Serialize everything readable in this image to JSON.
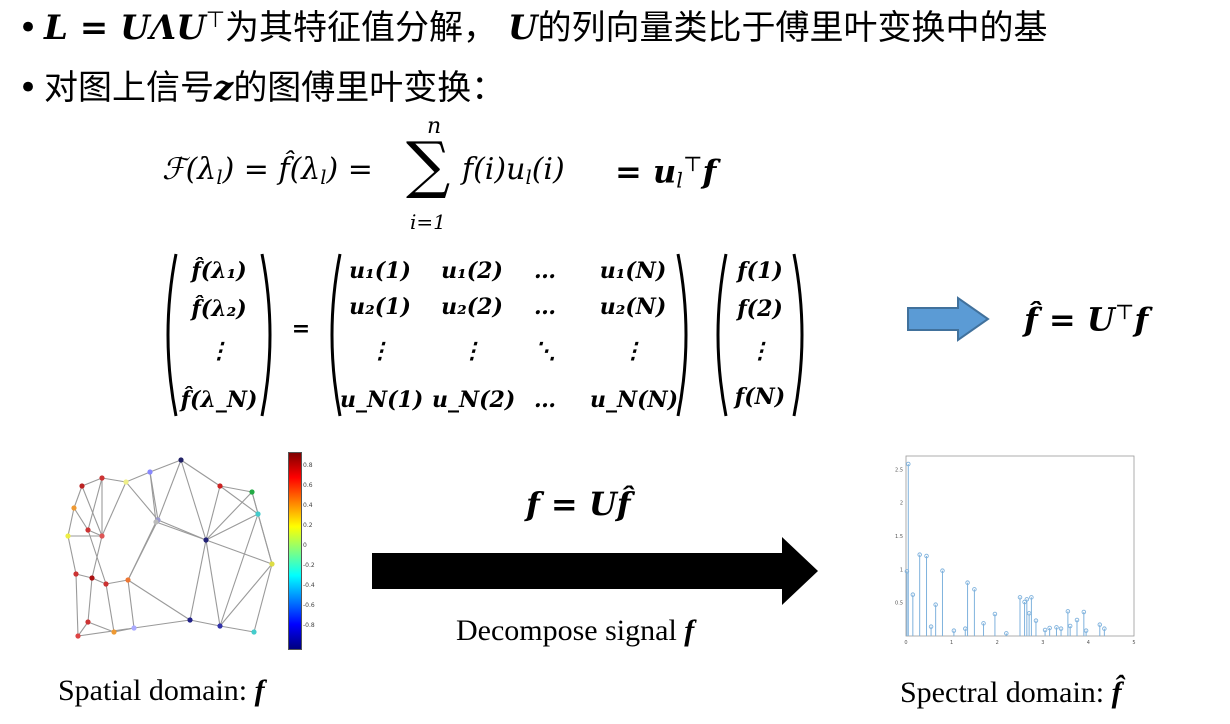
{
  "bullets": [
    {
      "math_a": "L = UΛU",
      "sup_a": "⊤",
      "text_a": "为其特征值分解，",
      "math_b": "U",
      "text_b": "的列向量类比于傅里叶变换中的基"
    },
    {
      "text_a": "对图上信号",
      "math_b": "z",
      "text_b": "的图傅里叶变换："
    }
  ],
  "formula": {
    "lhs": "ℱ(λ",
    "sub_l": "l",
    "mid": ") = f̂(λ",
    "mid_close": ") =",
    "sum_top": "n",
    "sum_sym": "∑",
    "sum_bottom": "i=1",
    "summand": "f(i)u",
    "summand_close": "(i)",
    "rhs": "= u",
    "rhs_sup": "⊤",
    "rhs_f": "f"
  },
  "matrix_eq": {
    "lhs_vector": [
      "f̂(λ₁)",
      "f̂(λ₂)",
      "⋮",
      "f̂(λ_N)"
    ],
    "equals": "=",
    "matrix": [
      [
        "u₁(1)",
        "u₁(2)",
        "…",
        "u₁(N)"
      ],
      [
        "u₂(1)",
        "u₂(2)",
        "…",
        "u₂(N)"
      ],
      [
        "⋮",
        "⋮",
        "⋱",
        "⋮"
      ],
      [
        "u_N(1)",
        "u_N(2)",
        "…",
        "u_N(N)"
      ]
    ],
    "rhs_vector": [
      "f(1)",
      "f(2)",
      "⋮",
      "f(N)"
    ]
  },
  "result": {
    "text": "f̂ = U",
    "sup": "⊤",
    "tail": "f"
  },
  "inverse": {
    "text": "f = Uf̂"
  },
  "captions": {
    "decompose": "Decompose signal",
    "decompose_math": "f",
    "spatial": "Spatial domain:",
    "spatial_math": "f",
    "spectral": "Spectral domain:",
    "spectral_math": "f̂"
  },
  "colors": {
    "arrow_blue": "#5b9bd5",
    "arrow_black": "#000000",
    "stem": "#7fb2dd"
  },
  "colorbar": {
    "ticks": [
      "0.8",
      "0.6",
      "0.4",
      "0.2",
      "0",
      "-0.2",
      "-0.4",
      "-0.6",
      "-0.8"
    ]
  },
  "chart_data": {
    "type": "stem",
    "title": "",
    "xlabel": "",
    "ylabel": "",
    "xlim": [
      0,
      5
    ],
    "ylim": [
      0,
      2.7
    ],
    "xticks": [
      "0",
      "1",
      "2",
      "3",
      "4",
      "5"
    ],
    "yticks": [
      "0.5",
      "1",
      "1.5",
      "2",
      "2.5"
    ],
    "x": [
      0.02,
      0.05,
      0.15,
      0.3,
      0.45,
      0.55,
      0.65,
      0.8,
      1.05,
      1.3,
      1.35,
      1.5,
      1.7,
      1.95,
      2.2,
      2.5,
      2.6,
      2.65,
      2.7,
      2.75,
      2.85,
      3.05,
      3.15,
      3.3,
      3.4,
      3.55,
      3.6,
      3.75,
      3.9,
      3.95,
      4.25,
      4.35
    ],
    "values": [
      0.97,
      2.58,
      0.62,
      1.22,
      1.2,
      0.14,
      0.47,
      0.98,
      0.08,
      0.11,
      0.8,
      0.7,
      0.19,
      0.33,
      0.04,
      0.58,
      0.51,
      0.55,
      0.34,
      0.58,
      0.23,
      0.09,
      0.12,
      0.13,
      0.11,
      0.37,
      0.15,
      0.24,
      0.36,
      0.08,
      0.17,
      0.11
    ]
  }
}
